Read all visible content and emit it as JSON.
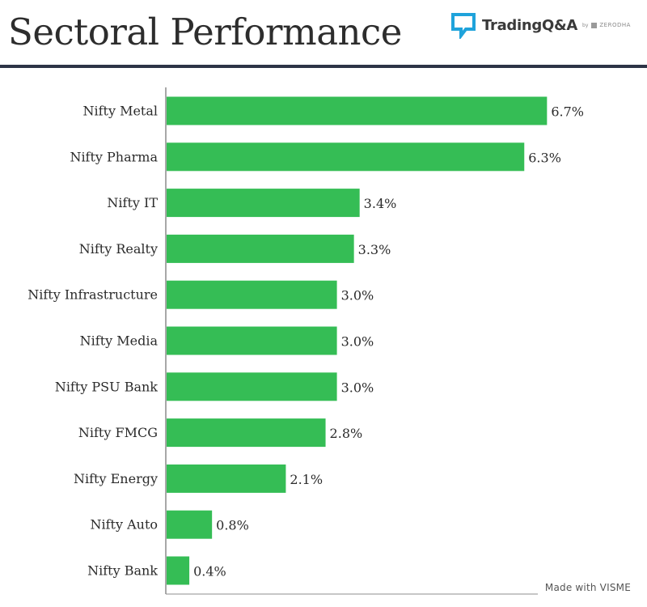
{
  "header": {
    "title": "Sectoral Performance",
    "brand_name": "TradingQ&A",
    "brand_by": "by",
    "brand_partner": "ZERODHA"
  },
  "footer": {
    "credit": "Made with VISME"
  },
  "colors": {
    "bar": "#35bd55",
    "axis": "#8c8c8c",
    "title_rule": "#2d3446",
    "brand_icon": "#1fa3db"
  },
  "chart_data": {
    "type": "bar",
    "orientation": "horizontal",
    "categories": [
      "Nifty Metal",
      "Nifty Pharma",
      "Nifty IT",
      "Nifty Realty",
      "Nifty Infrastructure",
      "Nifty Media",
      "Nifty PSU Bank",
      "Nifty FMCG",
      "Nifty Energy",
      "Nifty Auto",
      "Nifty Bank"
    ],
    "values": [
      6.7,
      6.3,
      3.4,
      3.3,
      3.0,
      3.0,
      3.0,
      2.8,
      2.1,
      0.8,
      0.4
    ],
    "value_labels": [
      "6.7%",
      "6.3%",
      "3.4%",
      "3.3%",
      "3.0%",
      "3.0%",
      "3.0%",
      "2.8%",
      "2.1%",
      "0.8%",
      "0.4%"
    ],
    "title": "Sectoral Performance",
    "xlabel": "",
    "ylabel": "",
    "grid": false,
    "legend": "none"
  }
}
